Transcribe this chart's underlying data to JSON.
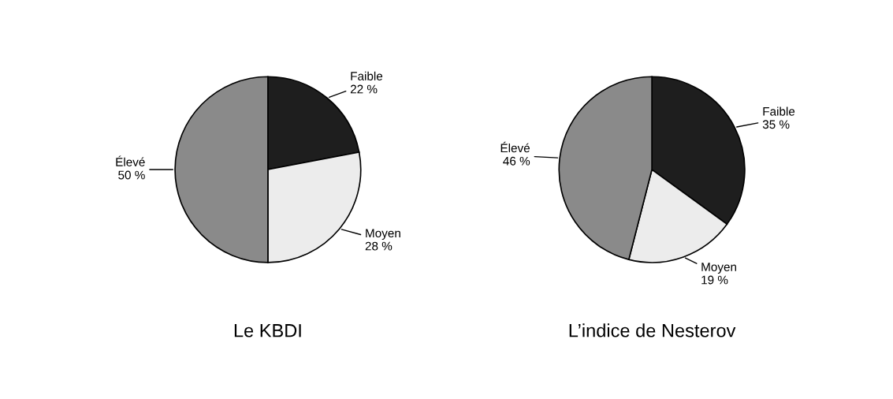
{
  "chart_data": [
    {
      "type": "pie",
      "title": "Le KBDI",
      "categories": [
        "Faible",
        "Moyen",
        "Élevé"
      ],
      "values": [
        22,
        28,
        50
      ],
      "value_labels": [
        "22 %",
        "28 %",
        "50 %"
      ],
      "colors": [
        "#1e1e1e",
        "#ececec",
        "#8a8a8a"
      ]
    },
    {
      "type": "pie",
      "title": "L’indice de Nesterov",
      "categories": [
        "Faible",
        "Moyen",
        "Élevé"
      ],
      "values": [
        35,
        19,
        46
      ],
      "value_labels": [
        "35 %",
        "19 %",
        "46 %"
      ],
      "colors": [
        "#1e1e1e",
        "#ececec",
        "#8a8a8a"
      ]
    }
  ]
}
